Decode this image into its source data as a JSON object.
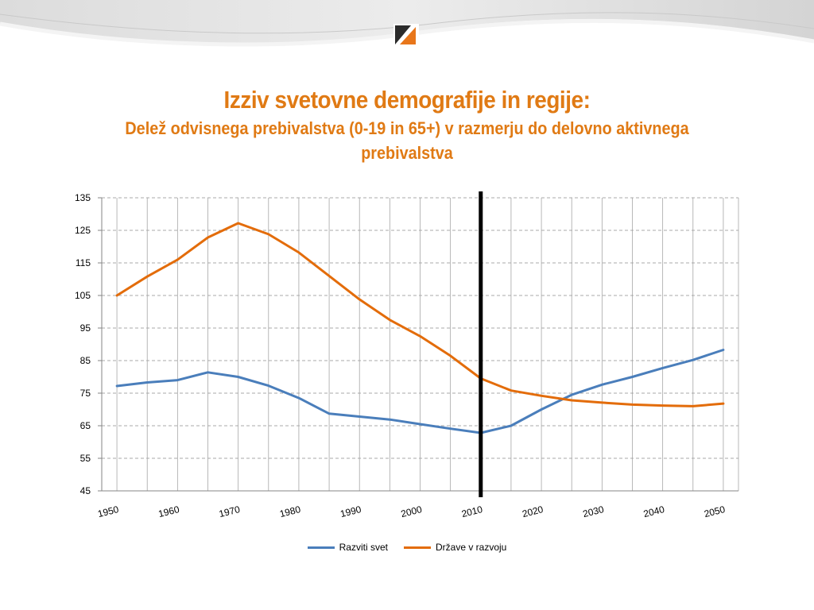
{
  "slide": {
    "title": "Izziv svetovne demografije in regije:",
    "subtitle": "Delež odvisnega prebivalstva (0-19  in 65+) v razmerju do delovno aktivnega prebivalstva"
  },
  "colors": {
    "accent": "#e07a14",
    "developed": "#4a7ebb",
    "developing": "#e36c0a",
    "marker": "#000000"
  },
  "chart_data": {
    "type": "line",
    "title": "",
    "xlabel": "",
    "ylabel": "",
    "ylim": [
      45,
      135
    ],
    "yticks": [
      45,
      55,
      65,
      75,
      85,
      95,
      105,
      115,
      125,
      135
    ],
    "xlim": [
      1947.5,
      2052.5
    ],
    "xticks": [
      1950,
      1960,
      1970,
      1980,
      1990,
      2000,
      2010,
      2020,
      2030,
      2040,
      2050
    ],
    "grid": true,
    "legend_position": "bottom",
    "vertical_marker_year": 2010,
    "x": [
      1950,
      1955,
      1960,
      1965,
      1970,
      1975,
      1980,
      1985,
      1990,
      1995,
      2000,
      2005,
      2010,
      2015,
      2020,
      2025,
      2030,
      2035,
      2040,
      2045,
      2050
    ],
    "series": [
      {
        "name": "Razviti svet",
        "values": [
          77.2,
          78.3,
          79,
          81.4,
          80,
          77.3,
          73.5,
          68.7,
          67.8,
          66.9,
          65.5,
          64.1,
          62.8,
          65,
          70,
          74.5,
          77.6,
          80,
          82.7,
          85.2,
          88.3
        ]
      },
      {
        "name": "Države v razvoju",
        "values": [
          105,
          110.8,
          116,
          122.8,
          127.2,
          123.8,
          118.2,
          111,
          103.8,
          97.5,
          92.5,
          86.5,
          79.5,
          75.8,
          74.2,
          72.8,
          72.1,
          71.5,
          71.2,
          71,
          71.8
        ]
      }
    ]
  }
}
